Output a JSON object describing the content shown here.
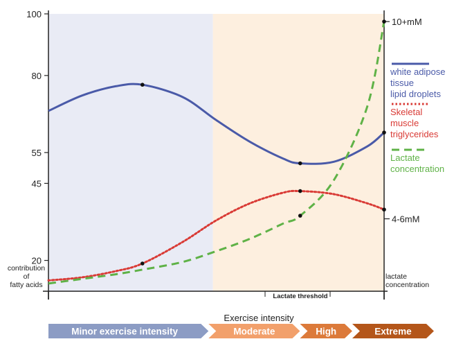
{
  "chart_data": {
    "type": "line",
    "xlabel": "Exercise intensity",
    "ylabel_left": [
      "contribution",
      "of",
      "fatty acids"
    ],
    "ylabel_right": [
      "lactate",
      "concentration"
    ],
    "left_ticks": [
      100,
      80,
      55,
      45,
      20
    ],
    "right_ticks": [
      "10+mM",
      "4-6mM"
    ],
    "y_range": [
      10,
      100
    ],
    "x_range": [
      0,
      1
    ],
    "threshold_label": "Lactate threshold",
    "zones": [
      {
        "name": "Minor exercise intensity",
        "x_start": 0.0,
        "x_end": 0.49,
        "color": "#8c9cc4"
      },
      {
        "name": "Moderate",
        "x_start": 0.49,
        "x_end": 0.77,
        "color": "#f2a06b"
      },
      {
        "name": "High",
        "x_start": 0.77,
        "x_end": 0.93,
        "color": "#dc7a3a"
      },
      {
        "name": "Extreme",
        "x_start": 0.93,
        "x_end": 1.18,
        "color": "#b4561a"
      }
    ],
    "background_regions": [
      {
        "x_start": 0.0,
        "x_end": 0.49,
        "color": "#e9ebf5"
      },
      {
        "x_start": 0.49,
        "x_end": 1.0,
        "color": "#fdefdf"
      }
    ],
    "series": [
      {
        "name": [
          "white adipose",
          "tissue",
          "lipid droplets"
        ],
        "color": "#4a5aa8",
        "dash": "solid",
        "x": [
          0.0,
          0.1,
          0.2,
          0.28,
          0.4,
          0.5,
          0.6,
          0.7,
          0.75,
          0.85,
          0.95,
          1.0
        ],
        "y": [
          68.5,
          73.5,
          76.5,
          77.0,
          73.0,
          65.5,
          58.5,
          53.0,
          51.5,
          52.0,
          57.0,
          61.5
        ],
        "points": [
          [
            0.28,
            77.0
          ],
          [
            0.75,
            51.5
          ],
          [
            1.0,
            61.5
          ]
        ]
      },
      {
        "name": [
          "Skeletal",
          "muscle",
          "triglycerides"
        ],
        "color": "#d93a35",
        "dash": "dotted",
        "x": [
          0.0,
          0.1,
          0.2,
          0.28,
          0.4,
          0.5,
          0.6,
          0.7,
          0.75,
          0.85,
          0.95,
          1.0
        ],
        "y": [
          13.5,
          14.5,
          16.5,
          19.0,
          26.0,
          33.0,
          38.5,
          42.0,
          42.5,
          41.5,
          38.5,
          36.5
        ],
        "points": [
          [
            0.28,
            19.0
          ],
          [
            0.75,
            42.5
          ],
          [
            1.0,
            36.5
          ]
        ]
      },
      {
        "name": [
          "Lactate",
          "concentration"
        ],
        "color": "#5fb247",
        "dash": "dashed",
        "x": [
          0.0,
          0.1,
          0.2,
          0.28,
          0.4,
          0.5,
          0.6,
          0.7,
          0.75,
          0.85,
          0.95,
          1.0
        ],
        "y": [
          12.5,
          14.0,
          15.5,
          17.0,
          19.5,
          23.0,
          27.0,
          32.0,
          34.5,
          46.0,
          70.0,
          97.5
        ],
        "points": [
          [
            0.75,
            34.5
          ],
          [
            1.0,
            97.5
          ]
        ]
      }
    ]
  }
}
